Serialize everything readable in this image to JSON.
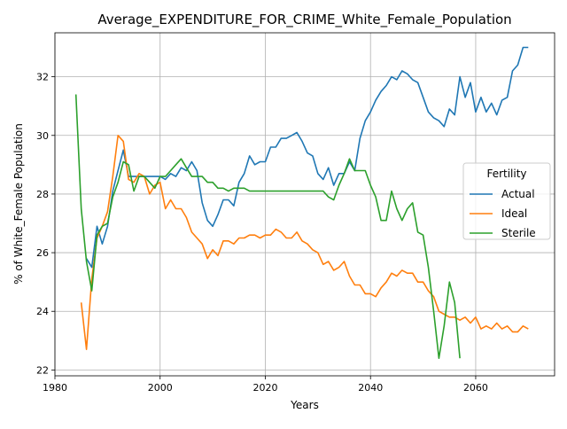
{
  "chart_data": {
    "type": "line",
    "title": "Average_EXPENDITURE_FOR_CRIME_White_Female_Population",
    "xlabel": "Years",
    "ylabel": "% of White_Female Population",
    "xlim": [
      1980,
      2075
    ],
    "ylim": [
      21.8,
      33.5
    ],
    "xticks": [
      1980,
      2000,
      2020,
      2040,
      2060
    ],
    "yticks": [
      22,
      24,
      26,
      28,
      30,
      32
    ],
    "grid": true,
    "legend": {
      "title": "Fertility",
      "placement": "center-right"
    },
    "series": [
      {
        "name": "Actual",
        "color": "#1f77b4",
        "x": [
          1986,
          1987,
          1988,
          1989,
          1990,
          1991,
          1992,
          1993,
          1994,
          1995,
          1996,
          1997,
          1998,
          1999,
          2000,
          2001,
          2002,
          2003,
          2004,
          2005,
          2006,
          2007,
          2008,
          2009,
          2010,
          2011,
          2012,
          2013,
          2014,
          2015,
          2016,
          2017,
          2018,
          2019,
          2020,
          2021,
          2022,
          2023,
          2024,
          2025,
          2026,
          2027,
          2028,
          2029,
          2030,
          2031,
          2032,
          2033,
          2034,
          2035,
          2036,
          2037,
          2038,
          2039,
          2040,
          2041,
          2042,
          2043,
          2044,
          2045,
          2046,
          2047,
          2048,
          2049,
          2050,
          2051,
          2052,
          2053,
          2054,
          2055,
          2056,
          2057,
          2058,
          2059,
          2060,
          2061,
          2062,
          2063,
          2064,
          2065,
          2066,
          2067,
          2068,
          2069,
          2070
        ],
        "y": [
          25.8,
          25.5,
          26.9,
          26.3,
          26.9,
          28.1,
          28.8,
          29.5,
          28.6,
          28.6,
          28.6,
          28.6,
          28.6,
          28.6,
          28.6,
          28.5,
          28.7,
          28.6,
          28.9,
          28.8,
          29.1,
          28.8,
          27.7,
          27.1,
          26.9,
          27.3,
          27.8,
          27.8,
          27.6,
          28.4,
          28.7,
          29.3,
          29.0,
          29.1,
          29.1,
          29.6,
          29.6,
          29.9,
          29.9,
          30.0,
          30.1,
          29.8,
          29.4,
          29.3,
          28.7,
          28.5,
          28.9,
          28.3,
          28.7,
          28.7,
          29.1,
          28.8,
          29.9,
          30.5,
          30.8,
          31.2,
          31.5,
          31.7,
          32.0,
          31.9,
          32.2,
          32.1,
          31.9,
          31.8,
          31.3,
          30.8,
          30.6,
          30.5,
          30.3,
          30.9,
          30.7,
          32.0,
          31.3,
          31.8,
          30.8,
          31.3,
          30.8,
          31.1,
          30.7,
          31.2,
          31.3,
          32.2,
          32.4,
          33.0,
          33.0
        ]
      },
      {
        "name": "Ideal",
        "color": "#ff7f0e",
        "x": [
          1985,
          1986,
          1987,
          1988,
          1989,
          1990,
          1991,
          1992,
          1993,
          1994,
          1995,
          1996,
          1997,
          1998,
          1999,
          2000,
          2001,
          2002,
          2003,
          2004,
          2005,
          2006,
          2007,
          2008,
          2009,
          2010,
          2011,
          2012,
          2013,
          2014,
          2015,
          2016,
          2017,
          2018,
          2019,
          2020,
          2021,
          2022,
          2023,
          2024,
          2025,
          2026,
          2027,
          2028,
          2029,
          2030,
          2031,
          2032,
          2033,
          2034,
          2035,
          2036,
          2037,
          2038,
          2039,
          2040,
          2041,
          2042,
          2043,
          2044,
          2045,
          2046,
          2047,
          2048,
          2049,
          2050,
          2051,
          2052,
          2053,
          2054,
          2055,
          2056,
          2057,
          2058,
          2059,
          2060,
          2061,
          2062,
          2063,
          2064,
          2065,
          2066,
          2067,
          2068,
          2069,
          2070
        ],
        "y": [
          24.3,
          22.7,
          25.1,
          26.5,
          26.9,
          27.4,
          28.6,
          30.0,
          29.8,
          28.5,
          28.4,
          28.7,
          28.6,
          28.0,
          28.3,
          28.4,
          27.5,
          27.8,
          27.5,
          27.5,
          27.2,
          26.7,
          26.5,
          26.3,
          25.8,
          26.1,
          25.9,
          26.4,
          26.4,
          26.3,
          26.5,
          26.5,
          26.6,
          26.6,
          26.5,
          26.6,
          26.6,
          26.8,
          26.7,
          26.5,
          26.5,
          26.7,
          26.4,
          26.3,
          26.1,
          26.0,
          25.6,
          25.7,
          25.4,
          25.5,
          25.7,
          25.2,
          24.9,
          24.9,
          24.6,
          24.6,
          24.5,
          24.8,
          25.0,
          25.3,
          25.2,
          25.4,
          25.3,
          25.3,
          25.0,
          25.0,
          24.7,
          24.5,
          24.0,
          23.9,
          23.8,
          23.8,
          23.7,
          23.8,
          23.6,
          23.8,
          23.4,
          23.5,
          23.4,
          23.6,
          23.4,
          23.5,
          23.3,
          23.3,
          23.5,
          23.4
        ]
      },
      {
        "name": "Sterile",
        "color": "#2ca02c",
        "x": [
          1984,
          1985,
          1986,
          1987,
          1988,
          1989,
          1990,
          1991,
          1992,
          1993,
          1994,
          1995,
          1996,
          1997,
          1998,
          1999,
          2000,
          2001,
          2002,
          2003,
          2004,
          2005,
          2006,
          2007,
          2008,
          2009,
          2010,
          2011,
          2012,
          2013,
          2014,
          2015,
          2016,
          2017,
          2018,
          2019,
          2020,
          2021,
          2022,
          2023,
          2024,
          2025,
          2026,
          2027,
          2028,
          2029,
          2030,
          2031,
          2032,
          2033,
          2034,
          2035,
          2036,
          2037,
          2038,
          2039,
          2040,
          2041,
          2042,
          2043,
          2044,
          2045,
          2046,
          2047,
          2048,
          2049,
          2050,
          2051,
          2052,
          2053,
          2054,
          2055,
          2056,
          2057
        ],
        "y": [
          31.4,
          27.5,
          25.7,
          24.7,
          26.6,
          26.9,
          27.0,
          27.9,
          28.4,
          29.1,
          29.0,
          28.1,
          28.6,
          28.6,
          28.4,
          28.2,
          28.6,
          28.6,
          28.8,
          29.0,
          29.2,
          28.9,
          28.6,
          28.6,
          28.6,
          28.4,
          28.4,
          28.2,
          28.2,
          28.1,
          28.2,
          28.2,
          28.2,
          28.1,
          28.1,
          28.1,
          28.1,
          28.1,
          28.1,
          28.1,
          28.1,
          28.1,
          28.1,
          28.1,
          28.1,
          28.1,
          28.1,
          28.1,
          27.9,
          27.8,
          28.3,
          28.7,
          29.2,
          28.8,
          28.8,
          28.8,
          28.3,
          27.9,
          27.1,
          27.1,
          28.1,
          27.5,
          27.1,
          27.5,
          27.7,
          26.7,
          26.6,
          25.5,
          24.0,
          22.4,
          23.5,
          25.0,
          24.3,
          22.4
        ]
      }
    ]
  }
}
